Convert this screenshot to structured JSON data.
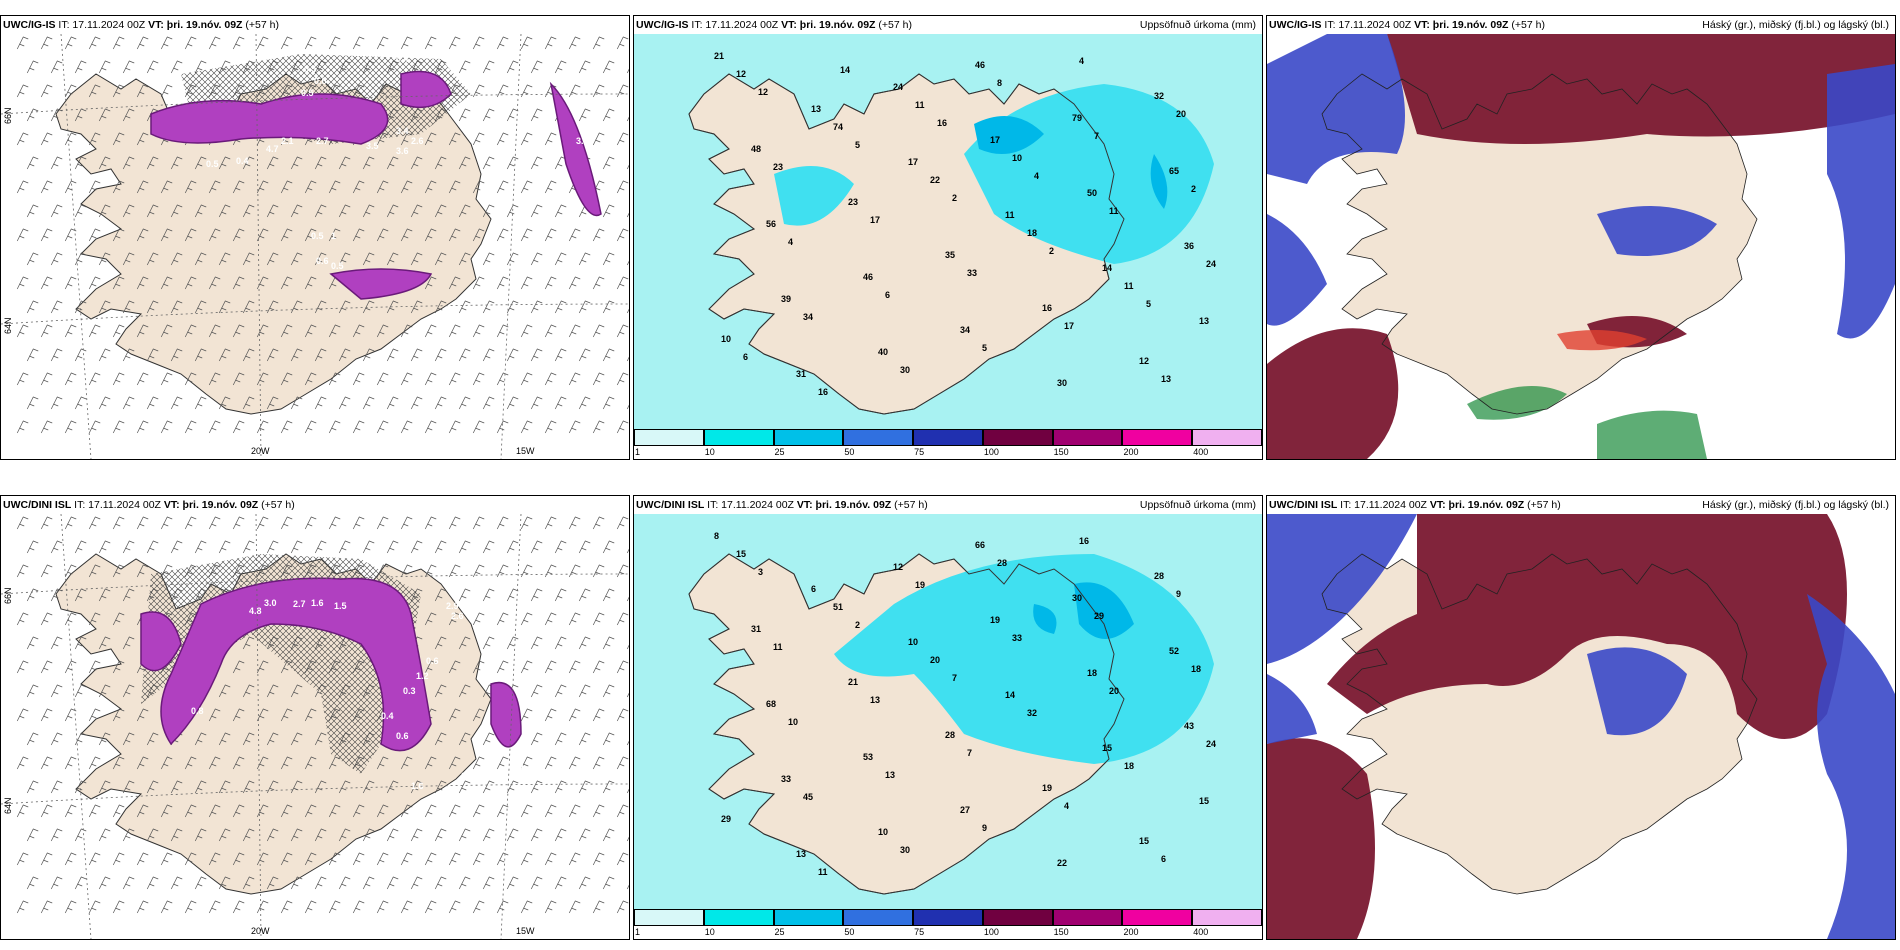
{
  "panels": [
    {
      "model": "UWC/IG-IS",
      "it": "IT: 17.11.2024 00Z",
      "vt_label": "VT:",
      "vt": "þri. 19.nóv. 09Z",
      "lead": "(+57 h)",
      "right_title": "",
      "kind": "wind"
    },
    {
      "model": "UWC/IG-IS",
      "it": "IT: 17.11.2024 00Z",
      "vt_label": "VT:",
      "vt": "þri. 19.nóv. 09Z",
      "lead": "(+57 h)",
      "right_title": "Uppsöfnuð úrkoma (mm)",
      "kind": "precip"
    },
    {
      "model": "UWC/IG-IS",
      "it": "IT: 17.11.2024 00Z",
      "vt_label": "VT:",
      "vt": "þri. 19.nóv. 09Z",
      "lead": "(+57 h)",
      "right_title": "Háský (gr.), miðský (fj.bl.) og lágský (bl.)",
      "kind": "cloud"
    },
    {
      "model": "UWC/DINI ISL",
      "it": "IT: 17.11.2024 00Z",
      "vt_label": "VT:",
      "vt": "þri. 19.nóv. 09Z",
      "lead": "(+57 h)",
      "right_title": "",
      "kind": "wind"
    },
    {
      "model": "UWC/DINI ISL",
      "it": "IT: 17.11.2024 00Z",
      "vt_label": "VT:",
      "vt": "þri. 19.nóv. 09Z",
      "lead": "(+57 h)",
      "right_title": "Uppsöfnuð úrkoma (mm)",
      "kind": "precip"
    },
    {
      "model": "UWC/DINI ISL",
      "it": "IT: 17.11.2024 00Z",
      "vt_label": "VT:",
      "vt": "þri. 19.nóv. 09Z",
      "lead": "(+57 h)",
      "right_title": "Háský (gr.), miðský (fj.bl.) og lágský (bl.)",
      "kind": "cloud"
    }
  ],
  "grid_labels": {
    "lon_20": "20W",
    "lon_15": "15W",
    "lat_66": "66N",
    "lat_64": "64N"
  },
  "colorbar": {
    "ticks": [
      "1",
      "10",
      "25",
      "50",
      "75",
      "100",
      "150",
      "200",
      "400"
    ],
    "colors": [
      "#d8f8f8",
      "#00e8e8",
      "#00c0e8",
      "#3070e0",
      "#2030b0",
      "#700040",
      "#a00070",
      "#f000a0",
      "#f0b0f0"
    ]
  },
  "colors": {
    "land": "#f2e4d4",
    "sea": "#ffffff",
    "precip_light": "#a8f2f2",
    "precip_mid": "#40e0f0",
    "precip_high": "#00b8e8",
    "snow": "#b040c0",
    "cloud_high": "#7a1830",
    "cloud_mid": "#3a48c8",
    "cloud_low": "#1a8a3a"
  },
  "precip_values_top": [
    "21",
    "13",
    "17",
    "11",
    "14",
    "13",
    "31",
    "24",
    "17",
    "50",
    "36",
    "39",
    "40",
    "46",
    "79",
    "65",
    "56",
    "46",
    "34",
    "30",
    "32",
    "48",
    "23",
    "35",
    "16",
    "12",
    "12",
    "74",
    "22",
    "18",
    "11",
    "10",
    "16",
    "11",
    "10",
    "11",
    "24",
    "34",
    "30",
    "8",
    "7",
    "2",
    "4",
    "6",
    "5",
    "4",
    "20",
    "23",
    "17",
    "33",
    "17",
    "13",
    "12",
    "5",
    "2",
    "2",
    "5",
    "6",
    "14",
    "16",
    "4"
  ],
  "precip_values_bottom": [
    "8",
    "6",
    "10",
    "14",
    "15",
    "15",
    "13",
    "12",
    "19",
    "18",
    "43",
    "33",
    "10",
    "66",
    "30",
    "52",
    "68",
    "53",
    "27",
    "22",
    "28",
    "31",
    "21",
    "28",
    "19",
    "15",
    "15",
    "51",
    "20",
    "32",
    "18",
    "29",
    "11",
    "19",
    "33",
    "20",
    "24",
    "45",
    "30",
    "28",
    "29",
    "18",
    "10",
    "13",
    "9",
    "16",
    "9",
    "11",
    "13",
    "7",
    "4",
    "6",
    "3",
    "2",
    "7"
  ],
  "snow_values_top": [
    "0.4",
    "0.5",
    "0.6",
    "0.5",
    "4.7",
    "2.1",
    "2.7",
    "3.5",
    "3.6",
    "2.6",
    "3.4",
    "2.7",
    "3.2",
    "0.5",
    "0.4",
    "0.5",
    "0.6",
    "1",
    "0.5"
  ],
  "snow_values_bottom": [
    "4.8",
    "3.0",
    "2.7",
    "1.6",
    "1.5",
    "2.9",
    "2.6",
    "0.6",
    "1.2",
    "0.3",
    "0.4",
    "0.6",
    "5.5",
    "0.4",
    "0.3",
    "1.6",
    "0.8"
  ]
}
